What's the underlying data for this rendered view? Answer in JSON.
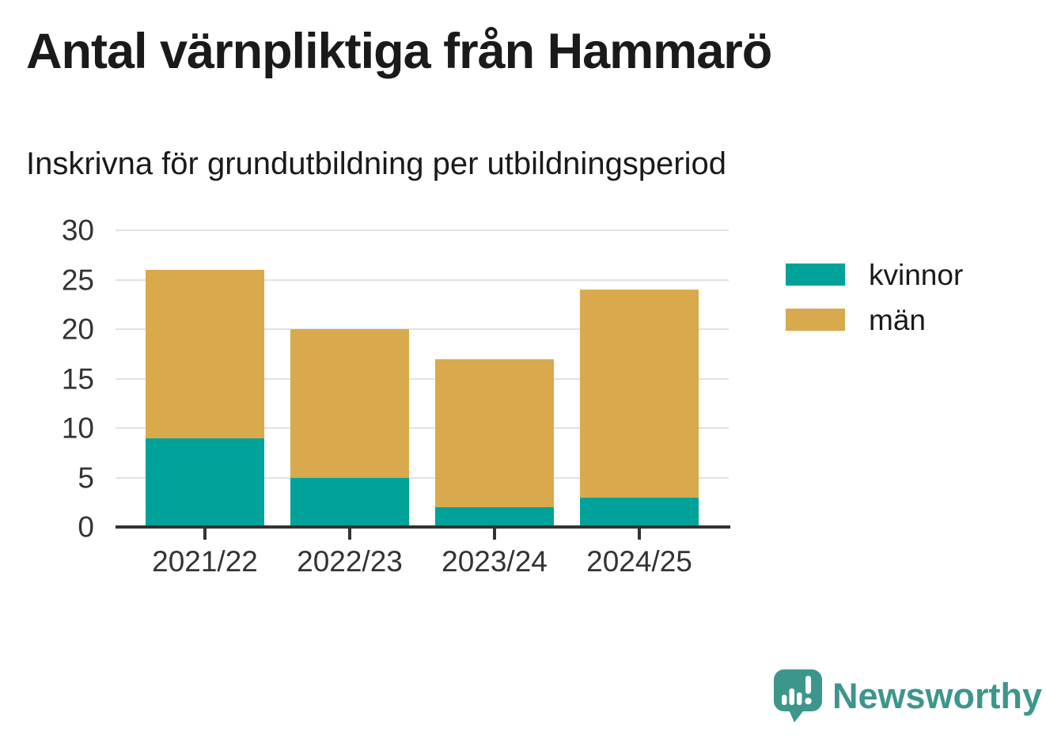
{
  "title": "Antal värnpliktiga från Hammarö",
  "subtitle": "Inskrivna för grundutbildning per utbildningsperiod",
  "chart_data": {
    "type": "bar",
    "stacked": true,
    "title": "Antal värnpliktiga från Hammarö",
    "subtitle": "Inskrivna för grundutbildning per utbildningsperiod",
    "categories": [
      "2021/22",
      "2022/23",
      "2023/24",
      "2024/25"
    ],
    "series": [
      {
        "name": "kvinnor",
        "color": "#00A29A",
        "values": [
          9,
          5,
          2,
          3
        ]
      },
      {
        "name": "män",
        "color": "#D9A94E",
        "values": [
          17,
          15,
          15,
          21
        ]
      }
    ],
    "stack_totals": [
      26,
      20,
      17,
      24
    ],
    "xlabel": "",
    "ylabel": "",
    "ylim": [
      0,
      30
    ],
    "yticks": [
      0,
      5,
      10,
      15,
      20,
      25,
      30
    ],
    "grid": true,
    "legend_position": "right-top"
  },
  "branding": {
    "logo_text": "Newsworthy",
    "logo_color": "#3D968C"
  },
  "colors": {
    "kvinnor": "#00A29A",
    "man": "#D9A94E",
    "title_text": "#1A1A1A",
    "axis_text": "#333333",
    "gridline": "#E2E2E2",
    "axis_line": "#333333",
    "background": "#FFFFFF"
  }
}
